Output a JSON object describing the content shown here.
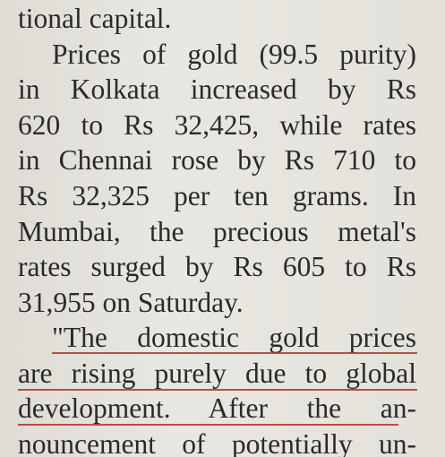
{
  "article": {
    "lines": [
      "tional capital.",
      "Prices of gold (99.5 purity)",
      "in Kolkata increased by Rs",
      "620 to Rs 32,425, while rates",
      "in Chennai rose by Rs 710 to",
      "Rs 32,325 per ten grams. In",
      "Mumbai, the precious metal's",
      "rates surged by Rs 605 to Rs",
      "31,955 on Saturday.",
      "\"The domestic gold prices",
      "are rising purely due to global",
      "development. After the an-",
      "nouncement of potentially un-"
    ]
  }
}
